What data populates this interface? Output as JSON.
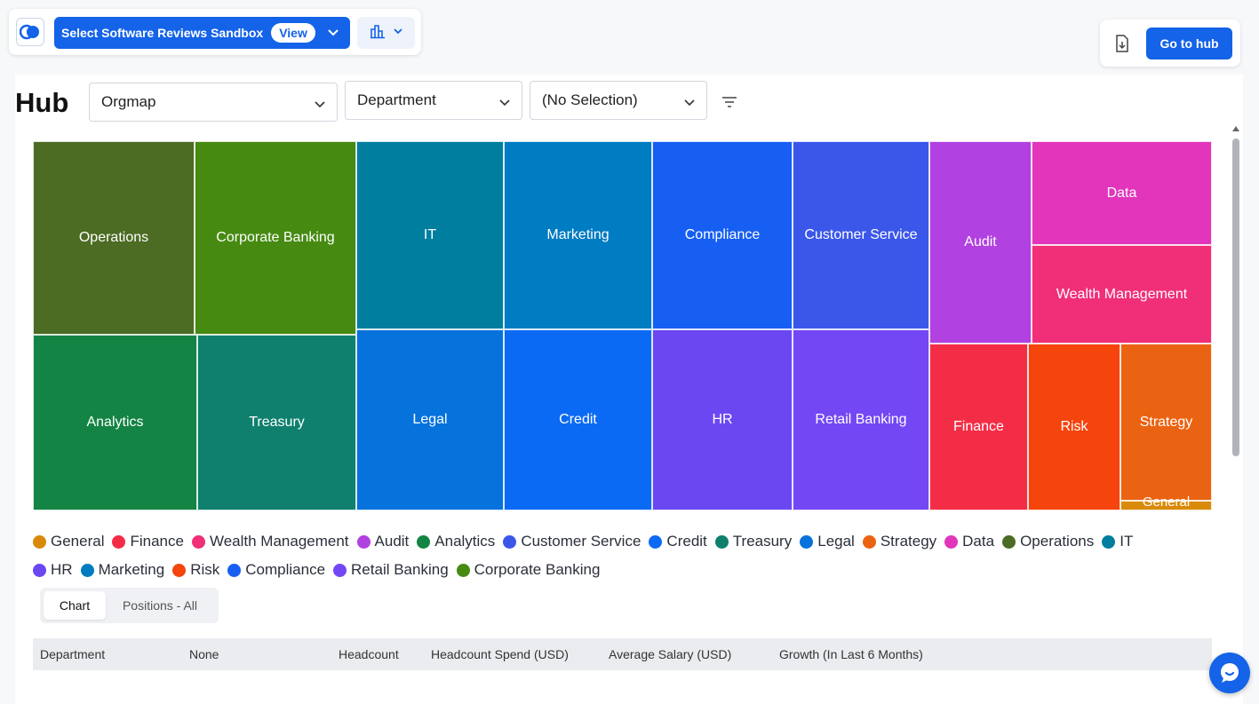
{
  "topbar": {
    "sandbox_label": "Select Software Reviews Sandbox",
    "view_label": "View",
    "logo_icon": "app-logo-icon",
    "chart_type_icon": "bar-chart-icon"
  },
  "actions": {
    "export_icon": "export-file-icon",
    "hub_button": "Go to hub"
  },
  "page": {
    "title": "Hub",
    "view_select": "Orgmap",
    "group_select": "Department",
    "filter_select": "(No Selection)",
    "filter_icon": "filter-lines-icon"
  },
  "chart_data": {
    "type": "treemap",
    "grouping": "Department",
    "tiles": [
      {
        "label": "Operations",
        "color": "#4c6b23"
      },
      {
        "label": "Corporate Banking",
        "color": "#468a12"
      },
      {
        "label": "Analytics",
        "color": "#138443"
      },
      {
        "label": "Treasury",
        "color": "#0f806d"
      },
      {
        "label": "IT",
        "color": "#007e9f"
      },
      {
        "label": "Marketing",
        "color": "#007cc2"
      },
      {
        "label": "Legal",
        "color": "#0672dc"
      },
      {
        "label": "Credit",
        "color": "#0b6af4"
      },
      {
        "label": "Compliance",
        "color": "#175ff3"
      },
      {
        "label": "Customer Service",
        "color": "#3b57ea"
      },
      {
        "label": "HR",
        "color": "#6b47f2"
      },
      {
        "label": "Retail Banking",
        "color": "#7447f5"
      },
      {
        "label": "Audit",
        "color": "#b141e0"
      },
      {
        "label": "Data",
        "color": "#e235bc"
      },
      {
        "label": "Wealth Management",
        "color": "#f02f78"
      },
      {
        "label": "Finance",
        "color": "#f42d46"
      },
      {
        "label": "Risk",
        "color": "#f5440c"
      },
      {
        "label": "Strategy",
        "color": "#ea6312"
      },
      {
        "label": "General",
        "color": "#d98a09"
      }
    ],
    "legend": [
      {
        "label": "General",
        "color": "#d98a09"
      },
      {
        "label": "Finance",
        "color": "#f42d46"
      },
      {
        "label": "Wealth Management",
        "color": "#f02f78"
      },
      {
        "label": "Audit",
        "color": "#b141e0"
      },
      {
        "label": "Analytics",
        "color": "#138443"
      },
      {
        "label": "Customer Service",
        "color": "#3b57ea"
      },
      {
        "label": "Credit",
        "color": "#0b6af4"
      },
      {
        "label": "Treasury",
        "color": "#0f806d"
      },
      {
        "label": "Legal",
        "color": "#0672dc"
      },
      {
        "label": "Strategy",
        "color": "#ea6312"
      },
      {
        "label": "Data",
        "color": "#e235bc"
      },
      {
        "label": "Operations",
        "color": "#4c6b23"
      },
      {
        "label": "IT",
        "color": "#007e9f"
      },
      {
        "label": "HR",
        "color": "#6b47f2"
      },
      {
        "label": "Marketing",
        "color": "#007cc2"
      },
      {
        "label": "Risk",
        "color": "#f5440c"
      },
      {
        "label": "Compliance",
        "color": "#175ff3"
      },
      {
        "label": "Retail Banking",
        "color": "#7447f5"
      },
      {
        "label": "Corporate Banking",
        "color": "#468a12"
      }
    ]
  },
  "tabs": [
    {
      "label": "Chart",
      "active": true
    },
    {
      "label": "Positions - All",
      "active": false
    }
  ],
  "table": {
    "columns": [
      "Department",
      "None",
      "Headcount",
      "Headcount Spend (USD)",
      "Average Salary (USD)",
      "Growth (In Last 6 Months)"
    ]
  },
  "chat": {
    "icon": "chat-bubble-icon"
  }
}
